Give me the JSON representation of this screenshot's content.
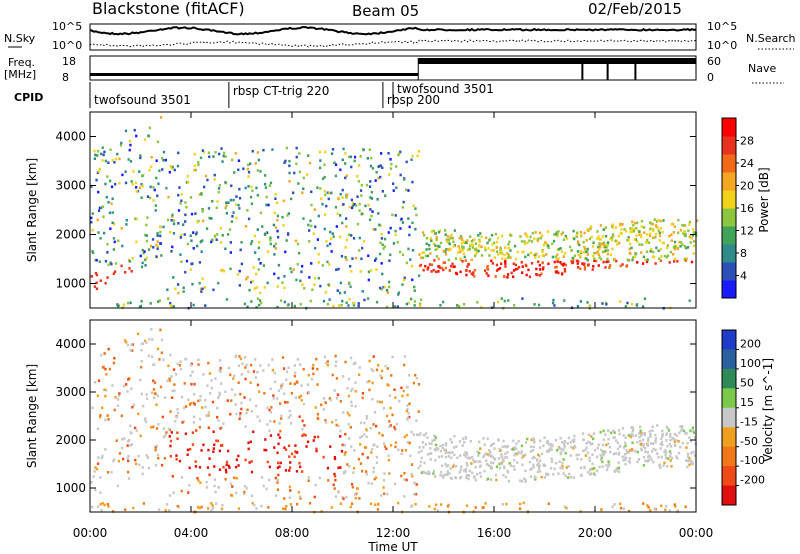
{
  "header": {
    "station": "Blackstone (fitACF)",
    "beam": "Beam 05",
    "date": "02/Feb/2015"
  },
  "summary_panels": {
    "nsky": {
      "label": "N.Sky",
      "y_ticks": [
        "10^5",
        "10^0"
      ]
    },
    "nsearch": {
      "label": "N.Search",
      "y_ticks": [
        "10^5",
        "10^0"
      ]
    },
    "freq": {
      "label": "Freq.",
      "unit": "[MHz]",
      "y_ticks": [
        "18",
        "8"
      ]
    },
    "nave": {
      "label": "Nave",
      "y_ticks": [
        "60",
        "0"
      ]
    },
    "cpid": {
      "label": "CPID",
      "programs": [
        {
          "name": "twofsound 3501",
          "start_hour": 0.0
        },
        {
          "name": "rbsp CT-trig 220",
          "start_hour": 5.5
        },
        {
          "name": "rbsp 200",
          "start_hour": 11.6
        },
        {
          "name": "twofsound 3501",
          "start_hour": 12.0
        }
      ]
    }
  },
  "chart_data": {
    "type": "heatmap",
    "x_unit": "hours UT",
    "xlim": [
      0,
      24
    ],
    "x_ticks": [
      "00:00",
      "04:00",
      "08:00",
      "12:00",
      "16:00",
      "20:00",
      "00:00"
    ],
    "xlabel": "Time UT",
    "panels": [
      {
        "name": "power",
        "ylabel": "Slant Range [km]",
        "ylim": [
          500,
          4500
        ],
        "y_ticks": [
          1000,
          2000,
          3000,
          4000
        ],
        "colorbar": {
          "label": "Power [dB]",
          "ticks": [
            4,
            8,
            12,
            16,
            20,
            24,
            28
          ],
          "colors": [
            "#1a1aff",
            "#2b4fb8",
            "#2f8a8a",
            "#3fa35a",
            "#8cc63f",
            "#f2d21b",
            "#f5a623",
            "#f06a1a",
            "#e8321e",
            "#ff0000"
          ]
        }
      },
      {
        "name": "velocity",
        "ylabel": "Slant Range [km]",
        "ylim": [
          500,
          4500
        ],
        "y_ticks": [
          1000,
          2000,
          3000,
          4000
        ],
        "colorbar": {
          "label": "Velocity [m s^-1]",
          "ticks": [
            "200",
            "100",
            "50",
            "15",
            "-15",
            "-50",
            "-100",
            "-200"
          ],
          "colors": [
            "#1e3cc8",
            "#2a5fa0",
            "#2e8a57",
            "#7cc84a",
            "#c8c8c8",
            "#f0a020",
            "#f07818",
            "#f04a18",
            "#e01010"
          ]
        }
      }
    ]
  }
}
